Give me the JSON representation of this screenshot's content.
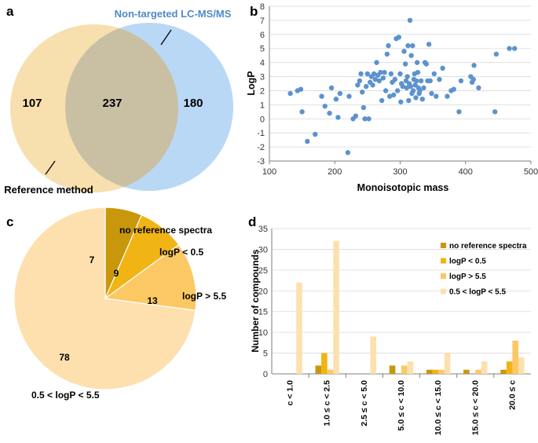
{
  "panels": {
    "a": "a",
    "b": "b",
    "c": "c",
    "d": "d"
  },
  "colors": {
    "venn_left": "#f8dfae",
    "venn_right": "#b9d8f5",
    "venn_overlap": "#c9c0a3",
    "blue_label": "#4f8ac8",
    "scatter_point": "#5b93cf",
    "grid": "#d9d9d9",
    "axis": "#7f7f7f",
    "cat1": "#c8970b",
    "cat2": "#f0b414",
    "cat3": "#fcc864",
    "cat4": "#fde0ad"
  },
  "chart_data": [
    {
      "panel": "a",
      "type": "venn",
      "sets": [
        {
          "name": "Reference method",
          "only": 107
        },
        {
          "name": "Non-targeted LC-MS/MS",
          "only": 180
        }
      ],
      "intersection": 237
    },
    {
      "panel": "b",
      "type": "scatter",
      "xlabel": "Monoisotopic mass",
      "ylabel": "LogP",
      "xlim": [
        100,
        500
      ],
      "ylim": [
        -3,
        8
      ],
      "xticks": [
        100,
        200,
        300,
        400,
        500
      ],
      "yticks": [
        -3,
        -2,
        -1,
        0,
        1,
        2,
        3,
        4,
        5,
        6,
        7,
        8
      ],
      "grid": "horizontal",
      "points": [
        [
          132,
          1.8
        ],
        [
          143,
          2.0
        ],
        [
          148,
          2.1
        ],
        [
          150,
          0.5
        ],
        [
          158,
          -1.6
        ],
        [
          170,
          -1.1
        ],
        [
          180,
          1.6
        ],
        [
          185,
          0.9
        ],
        [
          192,
          0.4
        ],
        [
          195,
          2.2
        ],
        [
          202,
          1.4
        ],
        [
          205,
          0.1
        ],
        [
          208,
          1.8
        ],
        [
          220,
          -2.4
        ],
        [
          222,
          1.6
        ],
        [
          228,
          0.0
        ],
        [
          232,
          0.2
        ],
        [
          235,
          2.4
        ],
        [
          238,
          2.7
        ],
        [
          240,
          3.2
        ],
        [
          242,
          1.9
        ],
        [
          244,
          0.8
        ],
        [
          246,
          0.0
        ],
        [
          248,
          2.3
        ],
        [
          250,
          3.2
        ],
        [
          252,
          0.0
        ],
        [
          254,
          2.6
        ],
        [
          256,
          3.0
        ],
        [
          258,
          2.4
        ],
        [
          260,
          3.2
        ],
        [
          262,
          2.8
        ],
        [
          264,
          4.0
        ],
        [
          266,
          3.1
        ],
        [
          268,
          2.7
        ],
        [
          270,
          3.3
        ],
        [
          272,
          1.3
        ],
        [
          274,
          2.9
        ],
        [
          276,
          3.3
        ],
        [
          278,
          2.0
        ],
        [
          280,
          4.6
        ],
        [
          282,
          5.2
        ],
        [
          284,
          1.6
        ],
        [
          286,
          3.2
        ],
        [
          288,
          2.6
        ],
        [
          290,
          1.7
        ],
        [
          292,
          2.8
        ],
        [
          294,
          5.7
        ],
        [
          296,
          2.0
        ],
        [
          298,
          5.8
        ],
        [
          300,
          3.2
        ],
        [
          301,
          1.2
        ],
        [
          302,
          2.5
        ],
        [
          304,
          2.3
        ],
        [
          306,
          4.8
        ],
        [
          308,
          3.9
        ],
        [
          309,
          2.7
        ],
        [
          310,
          2.2
        ],
        [
          311,
          3.0
        ],
        [
          312,
          5.2
        ],
        [
          313,
          1.3
        ],
        [
          314,
          2.5
        ],
        [
          315,
          7.0
        ],
        [
          316,
          2.3
        ],
        [
          317,
          4.5
        ],
        [
          318,
          1.8
        ],
        [
          319,
          5.2
        ],
        [
          320,
          2.0
        ],
        [
          321,
          2.8
        ],
        [
          322,
          3.2
        ],
        [
          323,
          2.4
        ],
        [
          324,
          1.5
        ],
        [
          325,
          2.7
        ],
        [
          326,
          4.0
        ],
        [
          327,
          3.3
        ],
        [
          328,
          2.2
        ],
        [
          329,
          1.8
        ],
        [
          330,
          2.0
        ],
        [
          332,
          2.7
        ],
        [
          334,
          1.4
        ],
        [
          336,
          2.2
        ],
        [
          338,
          4.0
        ],
        [
          340,
          3.9
        ],
        [
          342,
          2.7
        ],
        [
          344,
          5.3
        ],
        [
          346,
          2.7
        ],
        [
          348,
          1.8
        ],
        [
          352,
          3.2
        ],
        [
          355,
          1.6
        ],
        [
          360,
          2.8
        ],
        [
          365,
          3.6
        ],
        [
          372,
          1.6
        ],
        [
          378,
          2.0
        ],
        [
          382,
          2.1
        ],
        [
          390,
          0.5
        ],
        [
          393,
          2.7
        ],
        [
          408,
          3.0
        ],
        [
          410,
          2.6
        ],
        [
          412,
          2.8
        ],
        [
          413,
          3.8
        ],
        [
          420,
          2.2
        ],
        [
          445,
          0.5
        ],
        [
          447,
          4.6
        ],
        [
          467,
          5.0
        ],
        [
          475,
          5.0
        ]
      ]
    },
    {
      "panel": "c",
      "type": "pie",
      "slices": [
        {
          "label": "no reference spectra",
          "value": 7
        },
        {
          "label": "logP < 0.5",
          "value": 9
        },
        {
          "label": "logP > 5.5",
          "value": 13
        },
        {
          "label": "0.5 < logP < 5.5",
          "value": 78
        }
      ]
    },
    {
      "panel": "d",
      "type": "bar",
      "ylabel": "Number of compounds",
      "ylim": [
        0,
        35
      ],
      "yticks": [
        0,
        5,
        10,
        15,
        20,
        25,
        30,
        35
      ],
      "grid": "horizontal",
      "legend": "top-right",
      "categories": [
        "c < 1.0",
        "1.0 ≤ c < 2.5",
        "2.5 ≤ c < 5.0",
        "5.0 ≤ c < 10.0",
        "10.0 ≤ c < 15.0",
        "15.0 ≤ c < 20.0",
        "20.0 ≤ c"
      ],
      "series": [
        {
          "name": "no reference spectra",
          "values": [
            0,
            2,
            0,
            2,
            1,
            1,
            1
          ]
        },
        {
          "name": "logP < 0.5",
          "values": [
            0,
            5,
            0,
            0,
            1,
            0,
            3
          ]
        },
        {
          "name": "logP > 5.5",
          "values": [
            0,
            1,
            0,
            2,
            1,
            1,
            8
          ]
        },
        {
          "name": "0.5 < logP < 5.5",
          "values": [
            22,
            32,
            9,
            3,
            5,
            3,
            4
          ]
        }
      ]
    }
  ]
}
